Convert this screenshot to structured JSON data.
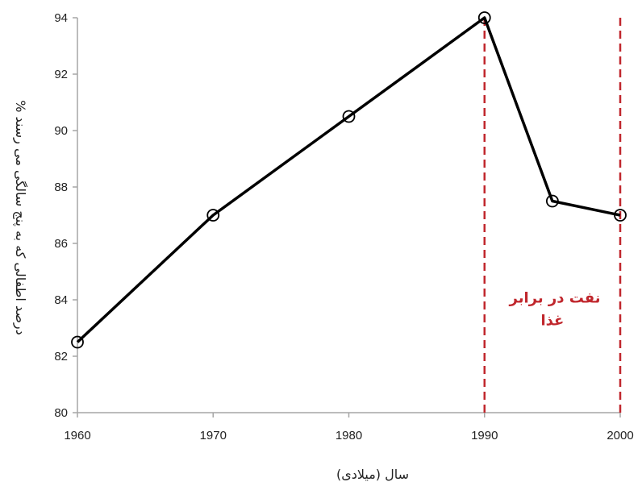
{
  "chart_data": {
    "type": "line",
    "title": "",
    "xlabel": "سال (میلادی)",
    "ylabel": "درصد اطفالی که به پنج سالگی می رسند %",
    "xlim": [
      1960,
      2000
    ],
    "ylim": [
      80,
      94
    ],
    "xticks": [
      "1960",
      "1970",
      "1980",
      "1990",
      "2000"
    ],
    "yticks": [
      "80",
      "82",
      "84",
      "86",
      "88",
      "90",
      "92",
      "94"
    ],
    "grid": false,
    "series": [
      {
        "x": [
          1960,
          1970,
          1980,
          1990,
          1995,
          2000
        ],
        "y": [
          82.5,
          87,
          90.5,
          94,
          87.5,
          87
        ],
        "color": "#000000",
        "marker": "open-circle"
      }
    ],
    "vlines": [
      {
        "x": 1990,
        "color": "#c0272d",
        "style": "dashed"
      },
      {
        "x": 2000,
        "color": "#c0272d",
        "style": "dashed"
      }
    ],
    "annotation": {
      "lines": [
        "نفت در برابر",
        "غذا"
      ],
      "color": "#c0272d",
      "x": 1995,
      "y": 83.5
    }
  }
}
